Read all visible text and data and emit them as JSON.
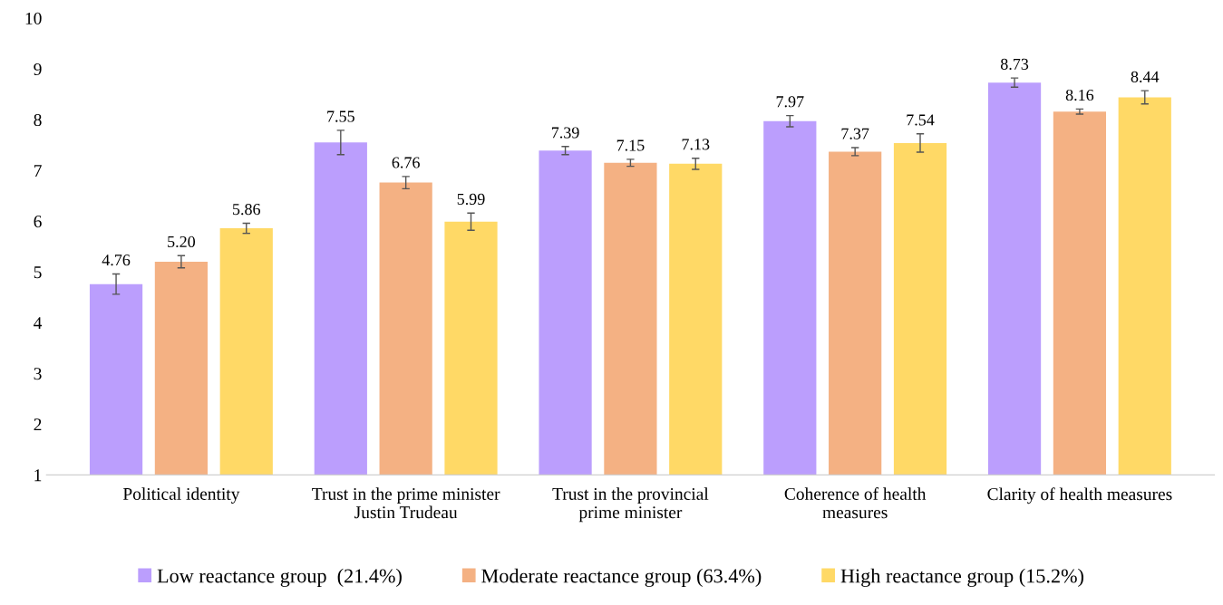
{
  "chart_data": {
    "type": "bar",
    "categories": [
      "Political identity",
      "Trust in the prime minister\nJustin Trudeau",
      "Trust in the provincial\nprime minister",
      "Coherence of health\nmeasures",
      "Clarity of health measures"
    ],
    "series": [
      {
        "name": "Low reactance group  (21.4%)",
        "color": "#bb9efd",
        "values": [
          4.76,
          7.55,
          7.39,
          7.97,
          8.73
        ],
        "errors": [
          0.2,
          0.24,
          0.08,
          0.11,
          0.09
        ]
      },
      {
        "name": "Moderate reactance group (63.4%)",
        "color": "#f4b183",
        "values": [
          5.2,
          6.76,
          7.15,
          7.37,
          8.16
        ],
        "errors": [
          0.12,
          0.12,
          0.07,
          0.08,
          0.05
        ]
      },
      {
        "name": "High reactance group (15.2%)",
        "color": "#ffd966",
        "values": [
          5.86,
          5.99,
          7.13,
          7.54,
          8.44
        ],
        "errors": [
          0.1,
          0.17,
          0.11,
          0.18,
          0.13
        ]
      }
    ],
    "value_labels": [
      [
        "4.76",
        "7.55",
        "7.39",
        "7.97",
        "8.73"
      ],
      [
        "5.20",
        "6.76",
        "7.15",
        "7.37",
        "8.16"
      ],
      [
        "5.86",
        "5.99",
        "7.13",
        "7.54",
        "8.44"
      ]
    ],
    "ylim": [
      1,
      10
    ],
    "yticks": [
      1,
      2,
      3,
      4,
      5,
      6,
      7,
      8,
      9,
      10
    ],
    "grid": false,
    "legend": "bottom"
  }
}
